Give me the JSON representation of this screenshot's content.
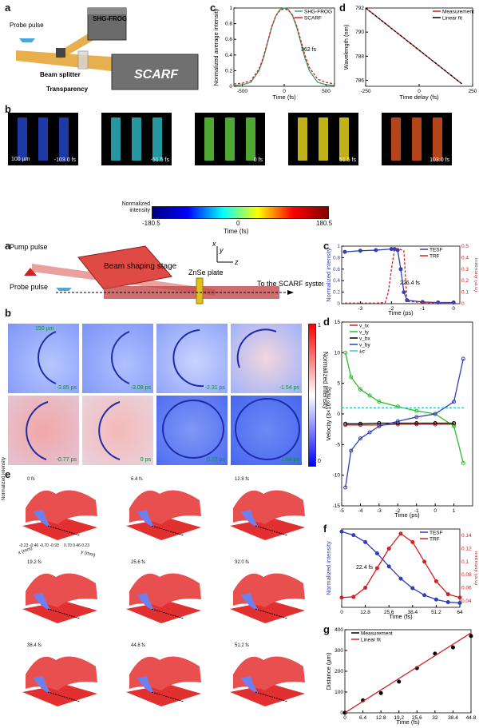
{
  "panel_letters": {
    "a1": "a",
    "b1": "b",
    "c1": "c",
    "d1": "d",
    "a2": "a",
    "b2": "b",
    "c2": "c",
    "d2": "d",
    "e": "e",
    "f": "f",
    "g": "g"
  },
  "diagram1": {
    "probe_pulse": "Probe pulse",
    "shg_frog": "SHG-FROG",
    "beam_splitter": "Beam splitter",
    "transparency": "Transparency",
    "scarf": "SCARF"
  },
  "strips": {
    "scale_label": "100 µm",
    "frames": [
      {
        "label": "-103.0 fs",
        "color": "#1f3fb8"
      },
      {
        "label": "-51.5 fs",
        "color": "#2aa7b3"
      },
      {
        "label": "0 fs",
        "color": "#58b93a"
      },
      {
        "label": "51.5 fs",
        "color": "#d6c51d"
      },
      {
        "label": "103.0 fs",
        "color": "#c84c1c"
      }
    ],
    "colorbar": {
      "ylabel": "Normalized intensity",
      "xlabel": "Time (fs)",
      "ticks": [
        "-180.5",
        "0",
        "180.5"
      ]
    }
  },
  "diagram2": {
    "pump_pulse": "Pump pulse",
    "beam_shaping": "Beam shaping stage",
    "znse": "ZnSe plate",
    "probe_pulse": "Probe pulse",
    "to_scarf": "To the SCARF system",
    "axis_x": "x",
    "axis_y": "y",
    "axis_z": "z"
  },
  "maps": {
    "scale": "150 µm",
    "frames": [
      "-3.85 ps",
      "-3.08 ps",
      "-2.31 ps",
      "-1.54 ps",
      "-0.77 ps",
      "0 ps",
      "0.77 ps",
      "1.54 ps"
    ],
    "colorbar": {
      "label": "Normalized intensity",
      "top": "1",
      "bottom": "0"
    }
  },
  "surfaces": {
    "frames": [
      "0 fs",
      "6.4 fs",
      "12.8 fs",
      "19.2 fs",
      "25.6 fs",
      "32.0 fs",
      "38.4 fs",
      "44.8 fs",
      "51.2 fs"
    ],
    "zlabel": "Normalized intensity",
    "xlabel": "x (mm)",
    "ylabel": "y (mm)",
    "x_ticks": [
      "-0.23",
      "-0.46",
      "-0.70",
      "-0.93"
    ],
    "y_ticks": [
      "0.70",
      "0.46",
      "0.23"
    ]
  },
  "chart_data": [
    {
      "id": "c1",
      "type": "line",
      "xlabel": "Time (fs)",
      "ylabel": "Normalized average intensity",
      "xlim": [
        -600,
        600
      ],
      "ylim": [
        0,
        1
      ],
      "x_ticks": [
        -500,
        0,
        500
      ],
      "y_ticks": [
        0,
        0.2,
        0.4,
        0.6,
        0.8,
        1
      ],
      "legend": "top-right",
      "annotation": "362 fs",
      "series": [
        {
          "name": "SHG-FROG",
          "color": "#3aa06a",
          "x": [
            -600,
            -500,
            -400,
            -300,
            -250,
            -200,
            -150,
            -100,
            -50,
            0,
            50,
            100,
            150,
            200,
            250,
            300,
            400,
            500,
            600
          ],
          "values": [
            0.01,
            0.02,
            0.05,
            0.2,
            0.35,
            0.55,
            0.75,
            0.9,
            0.98,
            1,
            0.98,
            0.9,
            0.75,
            0.55,
            0.35,
            0.2,
            0.05,
            0.02,
            0.01
          ]
        },
        {
          "name": "SCARF",
          "color": "#d42020",
          "x": [
            -600,
            -500,
            -400,
            -300,
            -250,
            -200,
            -150,
            -100,
            -50,
            0,
            50,
            100,
            150,
            200,
            250,
            300,
            400,
            500,
            600
          ],
          "values": [
            0.03,
            0.04,
            0.07,
            0.22,
            0.37,
            0.56,
            0.76,
            0.9,
            0.97,
            0.99,
            0.97,
            0.91,
            0.77,
            0.58,
            0.39,
            0.24,
            0.09,
            0.05,
            0.03
          ]
        }
      ]
    },
    {
      "id": "d1",
      "type": "line",
      "xlabel": "Time delay (fs)",
      "ylabel": "Wavelength (nm)",
      "xlim": [
        -250,
        250
      ],
      "ylim": [
        785.5,
        792
      ],
      "x_ticks": [
        -250,
        0,
        250
      ],
      "y_ticks": [
        786,
        788,
        790,
        792
      ],
      "legend": "top-right",
      "series": [
        {
          "name": "Measurement",
          "color": "#d42020",
          "x": [
            -250,
            200
          ],
          "values": [
            792,
            785.7
          ]
        },
        {
          "name": "Linear fit",
          "color": "#000000",
          "x": [
            -250,
            200
          ],
          "values": [
            792,
            785.7
          ]
        }
      ]
    },
    {
      "id": "c2",
      "type": "line",
      "xlabel": "Time (ps)",
      "ylabel": "Normalized intensity",
      "y2label": "Intensity (a.u)",
      "xlim": [
        -3.6,
        0.2
      ],
      "ylim": [
        0,
        1
      ],
      "y2lim": [
        0,
        0.5
      ],
      "x_ticks": [
        -3,
        -2,
        -1,
        0
      ],
      "y_ticks": [
        0,
        0.2,
        0.4,
        0.6,
        0.8,
        1
      ],
      "y2_ticks": [
        0,
        0.1,
        0.2,
        0.3,
        0.4,
        0.5
      ],
      "legend": "top-right",
      "annotation": "226.4 fs",
      "series": [
        {
          "name": "TESF",
          "color": "#2f3fb5",
          "x": [
            -3.5,
            -3,
            -2.5,
            -2,
            -1.9,
            -1.8,
            -1.7,
            -1.6,
            -1.5,
            -1,
            -0.5,
            0
          ],
          "values": [
            0.9,
            0.92,
            0.93,
            0.95,
            0.95,
            0.93,
            0.6,
            0.2,
            0.06,
            0.03,
            0.02,
            0.02
          ]
        },
        {
          "name": "TRF",
          "color": "#d42020",
          "x": [
            -3.5,
            -3,
            -2.5,
            -2.2,
            -2.1,
            -2,
            -1.9,
            -1.8,
            -1.6,
            -1.5,
            -1,
            -0.5,
            0
          ],
          "values": [
            0.005,
            0.005,
            0.005,
            0.01,
            0.1,
            0.3,
            0.47,
            0.48,
            0.46,
            0.02,
            0.01,
            0.005,
            0.005
          ]
        }
      ]
    },
    {
      "id": "d2",
      "type": "scatter",
      "xlabel": "Time (ps)",
      "ylabel": "Velocity (3×10⁸ m/s)",
      "xlim": [
        -5,
        2
      ],
      "ylim": [
        -15,
        15
      ],
      "x_ticks": [
        -5,
        -4,
        -3,
        -2,
        -1,
        0,
        1
      ],
      "y_ticks": [
        -15,
        -10,
        -5,
        0,
        5,
        10,
        15
      ],
      "legend": "bottom",
      "series": [
        {
          "name": "v_tx",
          "color": "#d42020",
          "x": [
            -4.8,
            -4,
            -3,
            -2,
            -1,
            0,
            1
          ],
          "values": [
            -1.8,
            -1.8,
            -1.8,
            -1.7,
            -1.7,
            -1.7,
            -1.7
          ]
        },
        {
          "name": "v_ty",
          "color": "#2dbb2d",
          "x": [
            -4.8,
            -4.5,
            -4,
            -3.5,
            -3,
            -2,
            -1,
            0,
            1,
            1.5
          ],
          "values": [
            10,
            6,
            4,
            3,
            2,
            1.2,
            0.5,
            0,
            -2,
            -8
          ]
        },
        {
          "name": "v_bx",
          "color": "#000000",
          "x": [
            -4.8,
            -4,
            -3,
            -2,
            -1,
            0,
            1
          ],
          "values": [
            -1.6,
            -1.6,
            -1.5,
            -1.5,
            -1.5,
            -1.5,
            -1.5
          ]
        },
        {
          "name": "v_by",
          "color": "#2f3fb5",
          "x": [
            -4.8,
            -4.5,
            -4,
            -3.5,
            -3,
            -2,
            -1,
            0,
            1,
            1.5
          ],
          "values": [
            -12,
            -6,
            -4,
            -3,
            -2,
            -1.2,
            -0.5,
            0,
            2,
            9
          ]
        },
        {
          "name": "±c",
          "color": "#35c8c8",
          "x": [
            -5,
            1.6
          ],
          "values": [
            1,
            1
          ]
        }
      ]
    },
    {
      "id": "f",
      "type": "line",
      "xlabel": "Time (fs)",
      "ylabel": "Normalized intensity",
      "y2label": "Intensity (a.u)",
      "xlim": [
        0,
        64
      ],
      "ylim": [
        0.1,
        1
      ],
      "y2lim": [
        0.03,
        0.15
      ],
      "x_ticks": [
        0,
        12.8,
        25.6,
        38.4,
        51.2,
        64
      ],
      "y2_ticks": [
        0.04,
        0.06,
        0.08,
        0.1,
        0.12,
        0.14
      ],
      "legend": "top-right",
      "annotation": "22.4 fs",
      "series": [
        {
          "name": "TESF",
          "color": "#2f3fb5",
          "x": [
            0,
            6.4,
            12.8,
            19.2,
            25.6,
            32,
            38.4,
            44.8,
            51.2,
            57.6,
            64
          ],
          "values": [
            0.97,
            0.93,
            0.85,
            0.72,
            0.57,
            0.43,
            0.32,
            0.24,
            0.19,
            0.16,
            0.15
          ]
        },
        {
          "name": "TRF",
          "color": "#d42020",
          "x": [
            0,
            6.4,
            12.8,
            19.2,
            25.6,
            32,
            38.4,
            44.8,
            51.2,
            57.6,
            64
          ],
          "values": [
            0.045,
            0.046,
            0.06,
            0.09,
            0.12,
            0.143,
            0.13,
            0.1,
            0.07,
            0.05,
            0.045
          ]
        }
      ]
    },
    {
      "id": "g",
      "type": "scatter",
      "xlabel": "Time (fs)",
      "ylabel": "Distance (µm)",
      "xlim": [
        0,
        44.8
      ],
      "ylim": [
        0,
        400
      ],
      "x_ticks": [
        0,
        6.4,
        12.8,
        19.2,
        25.6,
        32,
        38.4,
        44.8
      ],
      "y_ticks": [
        0,
        100,
        200,
        300,
        400
      ],
      "legend": "top-left",
      "series": [
        {
          "name": "Measurement",
          "color": "#000000",
          "x": [
            0,
            6.4,
            12.8,
            19.2,
            25.6,
            32,
            38.4,
            44.8
          ],
          "values": [
            0,
            60,
            95,
            150,
            215,
            285,
            315,
            370
          ]
        },
        {
          "name": "Linear fit",
          "color": "#d42020",
          "x": [
            0,
            44.8
          ],
          "values": [
            0,
            385
          ]
        }
      ]
    }
  ]
}
